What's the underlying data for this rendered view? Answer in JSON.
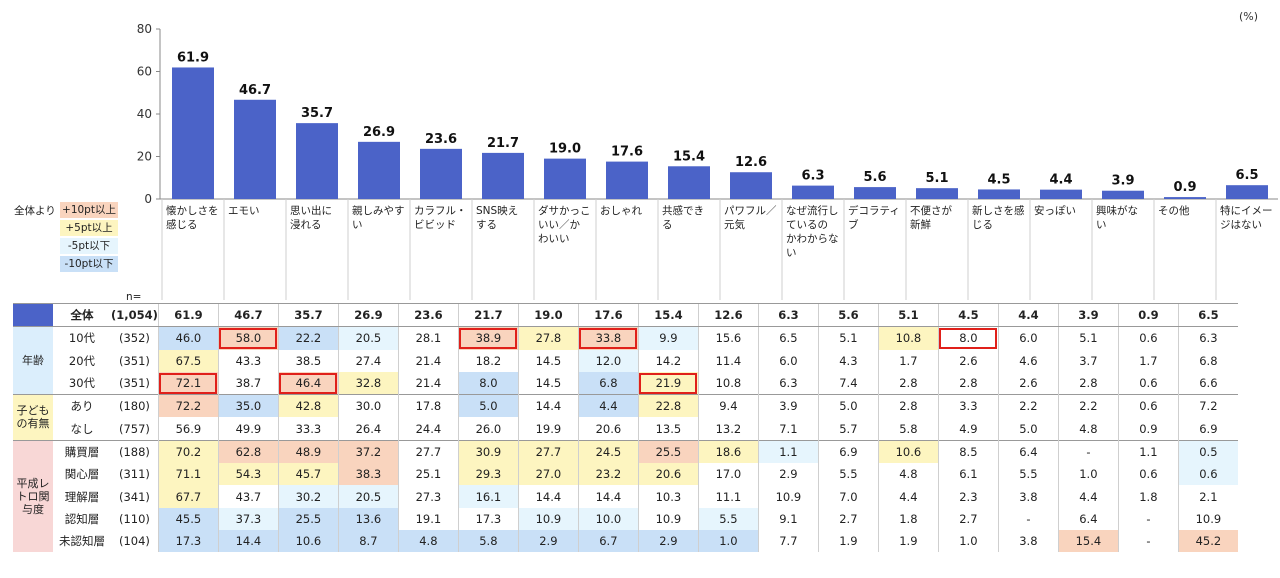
{
  "chart_data": {
    "type": "bar",
    "unit_label": "(%)",
    "ylim": [
      0,
      80
    ],
    "yticks": [
      0,
      20,
      40,
      60,
      80
    ],
    "categories": [
      "懐かしさを\n感じる",
      "エモい",
      "思い出に\n浸れる",
      "親しみやす\nい",
      "カラフル・\nビビッド",
      "SNS映え\nする",
      "ダサかっこ\nいい／か\nわいい",
      "おしゃれ",
      "共感でき\nる",
      "パワフル／\n元気",
      "なぜ流行し\nているの\nかわからな\nい",
      "デコラティ\nブ",
      "不便さが\n新鮮",
      "新しさを感\nじる",
      "安っぽい",
      "興味がな\nい",
      "その他",
      "特にイメー\nジはない"
    ],
    "values": [
      61.9,
      46.7,
      35.7,
      26.9,
      23.6,
      21.7,
      19.0,
      17.6,
      15.4,
      12.6,
      6.3,
      5.6,
      5.1,
      4.5,
      4.4,
      3.9,
      0.9,
      6.5
    ],
    "bar_color": "#4b63c8"
  },
  "legend": {
    "title": "全体より",
    "items": [
      {
        "label": "+10pt以上",
        "color": "#f9d4be"
      },
      {
        "label": "+5pt以上",
        "color": "#fdf5c0"
      },
      {
        "label": "-5pt以下",
        "color": "#e6f5fd"
      },
      {
        "label": "-10pt以下",
        "color": "#c9e0f7"
      }
    ]
  },
  "table": {
    "n_header": "n=",
    "rows": [
      {
        "group": "",
        "segment": "全体",
        "n": "(1,054)",
        "values": [
          "61.9",
          "46.7",
          "35.7",
          "26.9",
          "23.6",
          "21.7",
          "19.0",
          "17.6",
          "15.4",
          "12.6",
          "6.3",
          "5.6",
          "5.1",
          "4.5",
          "4.4",
          "3.9",
          "0.9",
          "6.5"
        ],
        "cls": [],
        "hl": []
      },
      {
        "group": "年齢",
        "segment": "10代",
        "n": "(352)",
        "values": [
          "46.0",
          "58.0",
          "22.2",
          "20.5",
          "28.1",
          "38.9",
          "27.8",
          "33.8",
          "9.9",
          "15.6",
          "6.5",
          "5.1",
          "10.8",
          "8.0",
          "6.0",
          "5.1",
          "0.6",
          "6.3"
        ],
        "cls": [
          "b",
          "o",
          "b",
          "l",
          "",
          "o",
          "y",
          "o",
          "l",
          "",
          "",
          "",
          "y",
          "",
          "",
          "",
          "",
          ""
        ],
        "hl": [
          1,
          5,
          7,
          13
        ]
      },
      {
        "group": "",
        "segment": "20代",
        "n": "(351)",
        "values": [
          "67.5",
          "43.3",
          "38.5",
          "27.4",
          "21.4",
          "18.2",
          "14.5",
          "12.0",
          "14.2",
          "11.4",
          "6.0",
          "4.3",
          "1.7",
          "2.6",
          "4.6",
          "3.7",
          "1.7",
          "6.8"
        ],
        "cls": [
          "y",
          "",
          "",
          "",
          "",
          "",
          "",
          "l",
          "",
          "",
          "",
          "",
          "",
          "",
          "",
          "",
          "",
          ""
        ],
        "hl": []
      },
      {
        "group": "",
        "segment": "30代",
        "n": "(351)",
        "values": [
          "72.1",
          "38.7",
          "46.4",
          "32.8",
          "21.4",
          "8.0",
          "14.5",
          "6.8",
          "21.9",
          "10.8",
          "6.3",
          "7.4",
          "2.8",
          "2.8",
          "2.6",
          "2.8",
          "0.6",
          "6.6"
        ],
        "cls": [
          "o",
          "",
          "o",
          "y",
          "",
          "b",
          "",
          "b",
          "y",
          "",
          "",
          "",
          "",
          "",
          "",
          "",
          "",
          ""
        ],
        "hl": [
          0,
          2,
          8
        ]
      },
      {
        "group": "子どもの有無",
        "segment": "あり",
        "n": "(180)",
        "values": [
          "72.2",
          "35.0",
          "42.8",
          "30.0",
          "17.8",
          "5.0",
          "14.4",
          "4.4",
          "22.8",
          "9.4",
          "3.9",
          "5.0",
          "2.8",
          "3.3",
          "2.2",
          "2.2",
          "0.6",
          "7.2"
        ],
        "cls": [
          "o",
          "b",
          "y",
          "",
          "",
          "b",
          "",
          "b",
          "y",
          "",
          "",
          "",
          "",
          "",
          "",
          "",
          "",
          ""
        ],
        "hl": []
      },
      {
        "group": "",
        "segment": "なし",
        "n": "(757)",
        "values": [
          "56.9",
          "49.9",
          "33.3",
          "26.4",
          "24.4",
          "26.0",
          "19.9",
          "20.6",
          "13.5",
          "13.2",
          "7.1",
          "5.7",
          "5.8",
          "4.9",
          "5.0",
          "4.8",
          "0.9",
          "6.9"
        ],
        "cls": [],
        "hl": []
      },
      {
        "group": "平成レトロ関与度",
        "segment": "購買層",
        "n": "(188)",
        "values": [
          "70.2",
          "62.8",
          "48.9",
          "37.2",
          "27.7",
          "30.9",
          "27.7",
          "24.5",
          "25.5",
          "18.6",
          "1.1",
          "6.9",
          "10.6",
          "8.5",
          "6.4",
          "-",
          "1.1",
          "0.5"
        ],
        "cls": [
          "y",
          "o",
          "o",
          "o",
          "",
          "y",
          "y",
          "y",
          "o",
          "y",
          "l",
          "",
          "y",
          "",
          "",
          "",
          "",
          "l"
        ],
        "hl": []
      },
      {
        "group": "",
        "segment": "関心層",
        "n": "(311)",
        "values": [
          "71.1",
          "54.3",
          "45.7",
          "38.3",
          "25.1",
          "29.3",
          "27.0",
          "23.2",
          "20.6",
          "17.0",
          "2.9",
          "5.5",
          "4.8",
          "6.1",
          "5.5",
          "1.0",
          "0.6",
          "0.6"
        ],
        "cls": [
          "y",
          "y",
          "y",
          "o",
          "",
          "y",
          "y",
          "y",
          "y",
          "",
          "",
          "",
          "",
          "",
          "",
          "",
          "",
          "l"
        ],
        "hl": []
      },
      {
        "group": "",
        "segment": "理解層",
        "n": "(341)",
        "values": [
          "67.7",
          "43.7",
          "30.2",
          "20.5",
          "27.3",
          "16.1",
          "14.4",
          "14.4",
          "10.3",
          "11.1",
          "10.9",
          "7.0",
          "4.4",
          "2.3",
          "3.8",
          "4.4",
          "1.8",
          "2.1"
        ],
        "cls": [
          "y",
          "",
          "l",
          "l",
          "",
          "l",
          "",
          "",
          "",
          "",
          "",
          "",
          "",
          "",
          "",
          "",
          "",
          ""
        ],
        "hl": []
      },
      {
        "group": "",
        "segment": "認知層",
        "n": "(110)",
        "values": [
          "45.5",
          "37.3",
          "25.5",
          "13.6",
          "19.1",
          "17.3",
          "10.9",
          "10.0",
          "10.9",
          "5.5",
          "9.1",
          "2.7",
          "1.8",
          "2.7",
          "-",
          "6.4",
          "-",
          "10.9"
        ],
        "cls": [
          "b",
          "l",
          "b",
          "b",
          "",
          "",
          "l",
          "l",
          "",
          "l",
          "",
          "",
          "",
          "",
          "",
          "",
          "",
          ""
        ],
        "hl": []
      },
      {
        "group": "",
        "segment": "未認知層",
        "n": "(104)",
        "values": [
          "17.3",
          "14.4",
          "10.6",
          "8.7",
          "4.8",
          "5.8",
          "2.9",
          "6.7",
          "2.9",
          "1.0",
          "7.7",
          "1.9",
          "1.9",
          "1.0",
          "3.8",
          "15.4",
          "-",
          "45.2"
        ],
        "cls": [
          "b",
          "b",
          "b",
          "b",
          "b",
          "b",
          "b",
          "b",
          "b",
          "b",
          "",
          "",
          "",
          "",
          "",
          "o",
          "",
          "o"
        ],
        "hl": []
      }
    ]
  }
}
